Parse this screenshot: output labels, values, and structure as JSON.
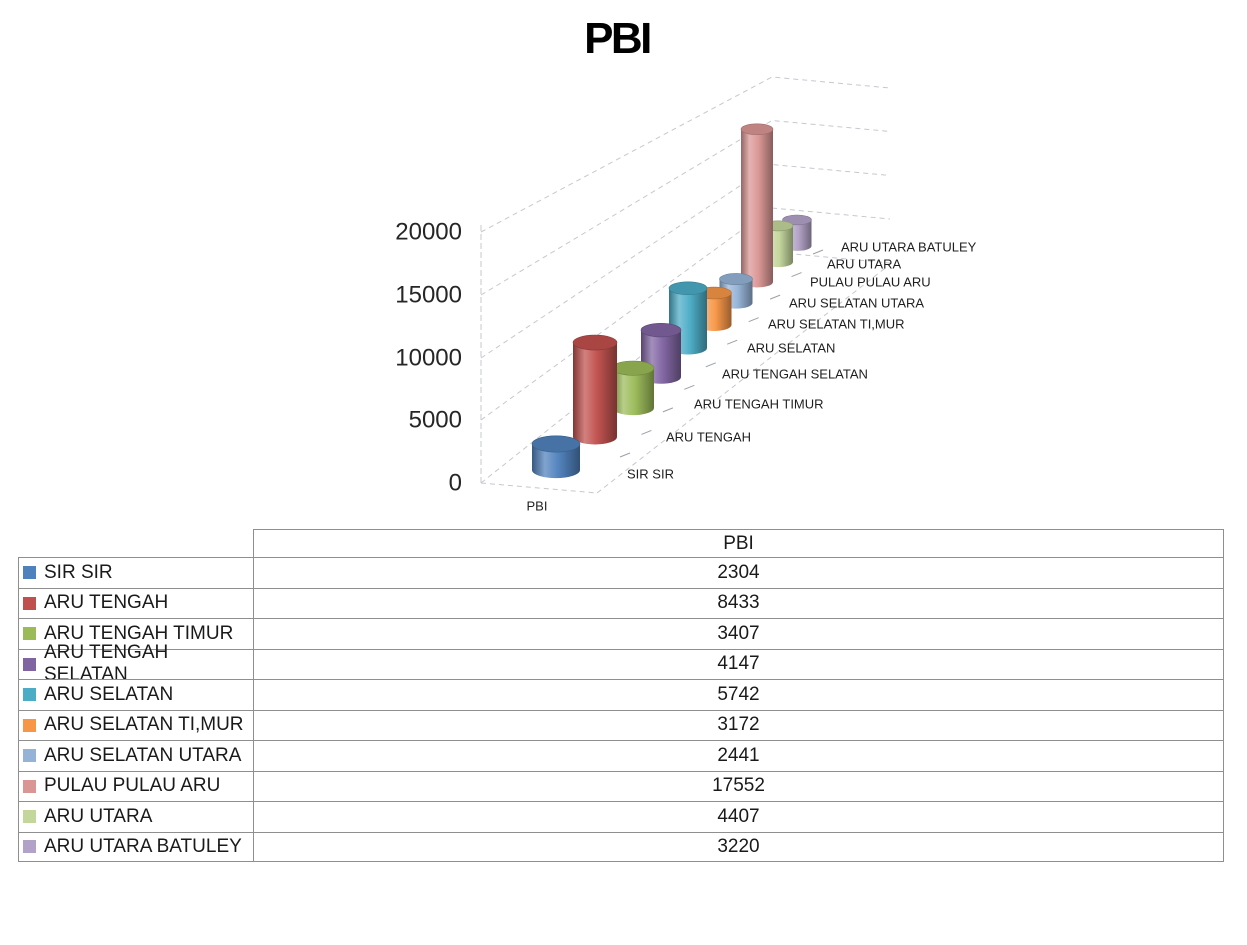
{
  "title": "PBI",
  "chart_data": {
    "type": "bar",
    "subtype": "3d-cylinder",
    "title": "PBI",
    "series_name": "PBI",
    "categories": [
      "SIR SIR",
      "ARU TENGAH",
      "ARU TENGAH TIMUR",
      "ARU TENGAH SELATAN",
      "ARU SELATAN",
      "ARU SELATAN TI,MUR",
      "ARU SELATAN UTARA",
      "PULAU PULAU ARU",
      "ARU UTARA",
      "ARU UTARA BATULEY"
    ],
    "values": [
      2304,
      8433,
      3407,
      4147,
      5742,
      3172,
      2441,
      17552,
      4407,
      3220
    ],
    "colors": [
      "#4F81BD",
      "#C0504D",
      "#9BBB59",
      "#8064A2",
      "#4BACC6",
      "#F79646",
      "#95B3D7",
      "#D99694",
      "#C3D69B",
      "#B2A2C7"
    ],
    "y_axis": {
      "min": 0,
      "max": 20000,
      "step": 5000,
      "tick_labels": [
        "0",
        "5000",
        "10000",
        "15000",
        "20000"
      ]
    },
    "x_axis_label": "PBI",
    "legend_position": "none",
    "grid": "dashed-3d-walls",
    "gridline_color": "#c5c8ce",
    "text_color": "#262626"
  },
  "table": {
    "value_column_header": "PBI",
    "rows": [
      {
        "label": "SIR SIR",
        "value": "2304",
        "color": "#4F81BD"
      },
      {
        "label": "ARU TENGAH",
        "value": "8433",
        "color": "#C0504D"
      },
      {
        "label": "ARU TENGAH TIMUR",
        "value": "3407",
        "color": "#9BBB59"
      },
      {
        "label": "ARU TENGAH SELATAN",
        "value": "4147",
        "color": "#8064A2"
      },
      {
        "label": "ARU SELATAN",
        "value": "5742",
        "color": "#4BACC6"
      },
      {
        "label": "ARU SELATAN TI,MUR",
        "value": "3172",
        "color": "#F79646"
      },
      {
        "label": "ARU SELATAN UTARA",
        "value": "2441",
        "color": "#95B3D7"
      },
      {
        "label": "PULAU PULAU ARU",
        "value": "17552",
        "color": "#D99694"
      },
      {
        "label": "ARU UTARA",
        "value": "4407",
        "color": "#C3D69B"
      },
      {
        "label": "ARU UTARA BATULEY",
        "value": "3220",
        "color": "#B2A2C7"
      }
    ]
  }
}
